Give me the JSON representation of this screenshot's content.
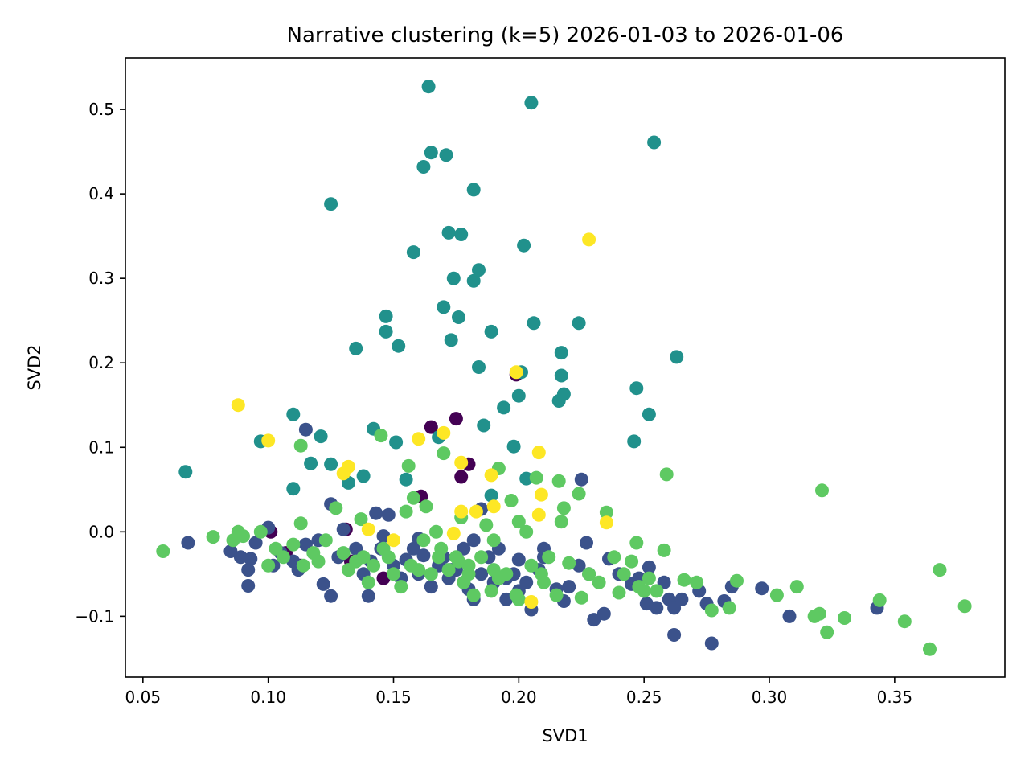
{
  "chart_data": {
    "type": "scatter",
    "title": "Narrative clustering (k=5) 2026-01-03 to 2026-01-06",
    "xlabel": "SVD1",
    "ylabel": "SVD2",
    "xlim": [
      0.043,
      0.394
    ],
    "ylim": [
      -0.172,
      0.561
    ],
    "x_ticks": [
      0.05,
      0.1,
      0.15,
      0.2,
      0.25,
      0.3,
      0.35
    ],
    "x_tick_labels": [
      "0.05",
      "0.10",
      "0.15",
      "0.20",
      "0.25",
      "0.30",
      "0.35"
    ],
    "y_ticks": [
      -0.1,
      0.0,
      0.1,
      0.2,
      0.3,
      0.4,
      0.5
    ],
    "y_tick_labels": [
      "−0.1",
      "0.0",
      "0.1",
      "0.2",
      "0.3",
      "0.4",
      "0.5"
    ],
    "grid": false,
    "legend": "none",
    "colors": {
      "cluster_0": "#440154",
      "cluster_1": "#3b528b",
      "cluster_2": "#21918c",
      "cluster_3": "#5ec962",
      "cluster_4": "#fde725"
    },
    "series": [
      {
        "cluster": 0,
        "color": "#440154",
        "x": [
          0.101,
          0.131,
          0.133,
          0.146,
          0.165,
          0.175,
          0.177,
          0.18,
          0.199,
          0.161,
          0.113,
          0.107
        ],
        "y": [
          0.0,
          0.003,
          -0.035,
          -0.055,
          0.124,
          0.134,
          0.065,
          0.08,
          0.186,
          0.042,
          -0.04,
          -0.025
        ]
      },
      {
        "cluster": 1,
        "color": "#3b528b",
        "x": [
          0.068,
          0.085,
          0.089,
          0.092,
          0.092,
          0.093,
          0.095,
          0.1,
          0.102,
          0.105,
          0.11,
          0.112,
          0.115,
          0.12,
          0.122,
          0.125,
          0.125,
          0.128,
          0.13,
          0.135,
          0.138,
          0.14,
          0.143,
          0.145,
          0.148,
          0.15,
          0.153,
          0.155,
          0.158,
          0.16,
          0.162,
          0.165,
          0.168,
          0.17,
          0.172,
          0.175,
          0.178,
          0.18,
          0.182,
          0.185,
          0.188,
          0.19,
          0.192,
          0.195,
          0.198,
          0.2,
          0.203,
          0.205,
          0.208,
          0.21,
          0.215,
          0.218,
          0.22,
          0.225,
          0.227,
          0.228,
          0.23,
          0.234,
          0.236,
          0.24,
          0.245,
          0.248,
          0.252,
          0.255,
          0.258,
          0.26,
          0.262,
          0.265,
          0.272,
          0.275,
          0.277,
          0.282,
          0.285,
          0.297,
          0.308,
          0.343,
          0.224,
          0.16,
          0.146,
          0.115,
          0.2,
          0.21,
          0.185,
          0.173,
          0.195,
          0.178,
          0.251,
          0.262,
          0.182,
          0.141
        ],
        "y": [
          -0.013,
          -0.023,
          -0.03,
          -0.045,
          -0.064,
          -0.032,
          -0.013,
          0.005,
          -0.04,
          -0.025,
          -0.035,
          -0.045,
          0.121,
          -0.01,
          -0.062,
          0.033,
          -0.076,
          -0.03,
          0.003,
          -0.02,
          -0.05,
          -0.076,
          0.022,
          -0.02,
          0.02,
          -0.04,
          -0.055,
          -0.033,
          -0.02,
          -0.05,
          -0.028,
          -0.065,
          -0.04,
          -0.03,
          -0.055,
          -0.045,
          -0.02,
          -0.068,
          -0.08,
          -0.05,
          -0.03,
          -0.06,
          -0.02,
          -0.08,
          -0.05,
          -0.033,
          -0.06,
          -0.092,
          -0.045,
          -0.03,
          -0.068,
          -0.082,
          -0.065,
          0.062,
          -0.013,
          -0.05,
          -0.104,
          -0.097,
          -0.032,
          -0.05,
          -0.062,
          -0.055,
          -0.042,
          -0.09,
          -0.06,
          -0.08,
          -0.122,
          -0.08,
          -0.07,
          -0.085,
          -0.132,
          -0.082,
          -0.065,
          -0.067,
          -0.1,
          -0.09,
          -0.04,
          -0.008,
          -0.005,
          -0.015,
          -0.07,
          -0.02,
          0.027,
          -0.045,
          -0.055,
          -0.06,
          -0.085,
          -0.09,
          -0.01,
          -0.035
        ]
      },
      {
        "cluster": 2,
        "color": "#21918c",
        "x": [
          0.067,
          0.097,
          0.11,
          0.11,
          0.121,
          0.117,
          0.125,
          0.125,
          0.132,
          0.135,
          0.138,
          0.142,
          0.147,
          0.147,
          0.151,
          0.152,
          0.155,
          0.158,
          0.162,
          0.164,
          0.165,
          0.168,
          0.17,
          0.171,
          0.172,
          0.173,
          0.174,
          0.176,
          0.177,
          0.182,
          0.182,
          0.184,
          0.184,
          0.186,
          0.189,
          0.194,
          0.198,
          0.2,
          0.201,
          0.202,
          0.203,
          0.205,
          0.206,
          0.216,
          0.217,
          0.217,
          0.218,
          0.224,
          0.246,
          0.247,
          0.252,
          0.254,
          0.263,
          0.189
        ],
        "y": [
          0.071,
          0.107,
          0.051,
          0.139,
          0.113,
          0.081,
          0.388,
          0.08,
          0.058,
          0.217,
          0.066,
          0.122,
          0.255,
          0.237,
          0.106,
          0.22,
          0.062,
          0.331,
          0.432,
          0.527,
          0.449,
          0.112,
          0.266,
          0.446,
          0.354,
          0.227,
          0.3,
          0.254,
          0.352,
          0.405,
          0.297,
          0.31,
          0.195,
          0.126,
          0.237,
          0.147,
          0.101,
          0.161,
          0.189,
          0.339,
          0.063,
          0.508,
          0.247,
          0.155,
          0.212,
          0.185,
          0.163,
          0.247,
          0.107,
          0.17,
          0.139,
          0.461,
          0.207,
          0.043
        ]
      },
      {
        "cluster": 3,
        "color": "#5ec962",
        "x": [
          0.058,
          0.078,
          0.086,
          0.088,
          0.09,
          0.097,
          0.1,
          0.103,
          0.106,
          0.11,
          0.113,
          0.113,
          0.114,
          0.118,
          0.12,
          0.123,
          0.127,
          0.13,
          0.132,
          0.135,
          0.137,
          0.138,
          0.14,
          0.142,
          0.145,
          0.146,
          0.148,
          0.15,
          0.153,
          0.155,
          0.156,
          0.158,
          0.16,
          0.162,
          0.163,
          0.165,
          0.167,
          0.169,
          0.17,
          0.172,
          0.175,
          0.177,
          0.178,
          0.18,
          0.182,
          0.185,
          0.187,
          0.189,
          0.19,
          0.192,
          0.195,
          0.197,
          0.199,
          0.2,
          0.203,
          0.205,
          0.207,
          0.21,
          0.212,
          0.215,
          0.216,
          0.217,
          0.218,
          0.22,
          0.224,
          0.225,
          0.228,
          0.232,
          0.235,
          0.238,
          0.24,
          0.242,
          0.245,
          0.247,
          0.25,
          0.252,
          0.255,
          0.258,
          0.259,
          0.266,
          0.271,
          0.277,
          0.284,
          0.287,
          0.303,
          0.311,
          0.318,
          0.32,
          0.321,
          0.323,
          0.33,
          0.344,
          0.354,
          0.364,
          0.368,
          0.378,
          0.157,
          0.2,
          0.19,
          0.18,
          0.168,
          0.209,
          0.248,
          0.192,
          0.176
        ],
        "y": [
          -0.023,
          -0.006,
          -0.01,
          0.0,
          -0.005,
          0.0,
          -0.04,
          -0.02,
          -0.03,
          -0.015,
          0.01,
          0.102,
          -0.04,
          -0.025,
          -0.035,
          -0.01,
          0.028,
          -0.025,
          -0.045,
          -0.035,
          0.015,
          -0.03,
          -0.06,
          -0.04,
          0.114,
          -0.02,
          -0.03,
          -0.05,
          -0.065,
          0.024,
          0.078,
          0.04,
          -0.045,
          -0.01,
          0.03,
          -0.05,
          0.0,
          -0.02,
          0.093,
          -0.045,
          -0.03,
          0.017,
          -0.06,
          -0.04,
          -0.075,
          -0.03,
          0.008,
          -0.07,
          -0.045,
          0.075,
          -0.05,
          0.037,
          -0.075,
          0.012,
          0.0,
          -0.04,
          0.064,
          -0.06,
          -0.03,
          -0.075,
          0.06,
          0.012,
          0.028,
          -0.037,
          0.045,
          -0.078,
          -0.05,
          -0.06,
          0.023,
          -0.03,
          -0.072,
          -0.05,
          -0.035,
          -0.013,
          -0.07,
          -0.055,
          -0.07,
          -0.022,
          0.068,
          -0.057,
          -0.06,
          -0.093,
          -0.09,
          -0.058,
          -0.075,
          -0.065,
          -0.1,
          -0.097,
          0.049,
          -0.119,
          -0.102,
          -0.081,
          -0.106,
          -0.139,
          -0.045,
          -0.088,
          -0.04,
          -0.08,
          -0.01,
          -0.05,
          -0.03,
          -0.05,
          -0.065,
          -0.055,
          -0.035
        ]
      },
      {
        "cluster": 4,
        "color": "#fde725",
        "x": [
          0.088,
          0.1,
          0.13,
          0.132,
          0.14,
          0.15,
          0.16,
          0.17,
          0.174,
          0.177,
          0.177,
          0.183,
          0.189,
          0.19,
          0.199,
          0.208,
          0.208,
          0.209,
          0.228,
          0.235,
          0.205
        ],
        "y": [
          0.15,
          0.108,
          0.069,
          0.077,
          0.003,
          -0.01,
          0.11,
          0.117,
          -0.002,
          0.082,
          0.024,
          0.024,
          0.067,
          0.03,
          0.189,
          0.094,
          0.02,
          0.044,
          0.346,
          0.011,
          -0.083
        ]
      }
    ]
  }
}
